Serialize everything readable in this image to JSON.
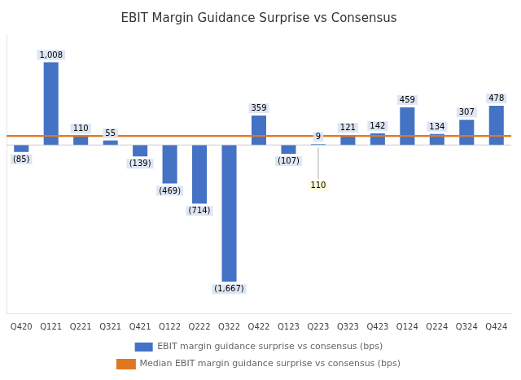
{
  "chart_data": {
    "type": "bar",
    "title": "EBIT Margin Guidance Surprise vs Consensus",
    "categories": [
      "Q420",
      "Q121",
      "Q221",
      "Q321",
      "Q421",
      "Q122",
      "Q222",
      "Q322",
      "Q422",
      "Q123",
      "Q223",
      "Q323",
      "Q423",
      "Q124",
      "Q224",
      "Q324",
      "Q424"
    ],
    "series": [
      {
        "name": "EBIT margin guidance surprise vs consensus (bps)",
        "type": "bar",
        "color": "#4472C4",
        "values": [
          -85,
          1008,
          110,
          55,
          -139,
          -469,
          -714,
          -1667,
          359,
          -107,
          9,
          121,
          142,
          459,
          134,
          307,
          478
        ],
        "value_labels": [
          "(85)",
          "1,008",
          "110",
          "55",
          "(139)",
          "(469)",
          "(714)",
          "(1,667)",
          "359",
          "(107)",
          "9",
          "121",
          "142",
          "459",
          "134",
          "307",
          "478"
        ]
      },
      {
        "name": "Median EBIT margin guidance surprise vs consensus (bps)",
        "type": "hline",
        "color": "#E07820",
        "value": 110
      }
    ],
    "annotations": [
      {
        "text": "110",
        "category": "Q223"
      }
    ],
    "ylim": [
      -2050,
      1350
    ],
    "grid": false,
    "legend": "bottom",
    "data_labels": true,
    "tick_labels": "x"
  }
}
